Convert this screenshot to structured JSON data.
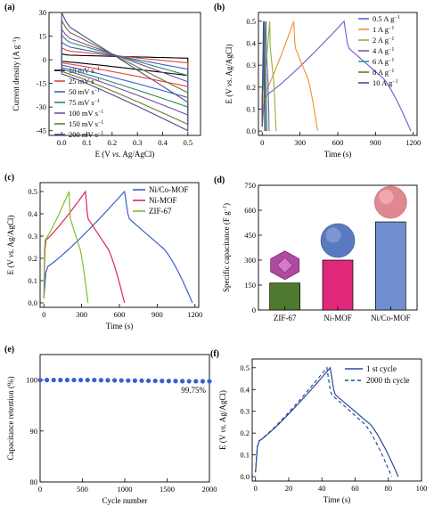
{
  "panels": [
    {
      "id": "a",
      "panel_label": "(a)",
      "type": "cv",
      "xlabel": "E (V vs. Ag/AgCl)",
      "ylabel": "Current density (A g⁻¹)",
      "xlim": [
        -0.05,
        0.55
      ],
      "ylim": [
        -48,
        30
      ],
      "xticks": [
        0.0,
        0.1,
        0.2,
        0.3,
        0.4,
        0.5
      ],
      "yticks": [
        -45,
        -30,
        -15,
        0,
        15,
        30
      ],
      "series": [
        {
          "name": "10 mV s⁻¹",
          "color": "#000000",
          "upper_start": 3.0,
          "upper_end": 1.0,
          "lower_start": -1.0,
          "lower_end": -10.0
        },
        {
          "name": "25 mV s⁻¹",
          "color": "#e8453c",
          "upper_start": 6.0,
          "upper_end": -2.0,
          "lower_start": -2.0,
          "lower_end": -17.0
        },
        {
          "name": "50 mV s⁻¹",
          "color": "#3a5fcd",
          "upper_start": 9.0,
          "upper_end": -6.0,
          "lower_start": -3.5,
          "lower_end": -24.0
        },
        {
          "name": "75 mV s⁻¹",
          "color": "#2e8b57",
          "upper_start": 12.5,
          "upper_end": -10.0,
          "lower_start": -5.0,
          "lower_end": -30.0
        },
        {
          "name": "100 mV s⁻¹",
          "color": "#7b4fa6",
          "upper_start": 15.5,
          "upper_end": -14.0,
          "lower_start": -6.0,
          "lower_end": -35.0
        },
        {
          "name": "150 mV s⁻¹",
          "color": "#6b7a2a",
          "upper_start": 20.0,
          "upper_end": -21.0,
          "lower_start": -7.5,
          "lower_end": -41.0
        },
        {
          "name": "200 mV s⁻¹",
          "color": "#4a4a8a",
          "upper_start": 24.0,
          "upper_end": -27.0,
          "lower_start": -9.0,
          "lower_end": -45.0
        }
      ]
    },
    {
      "id": "b",
      "panel_label": "(b)",
      "type": "gcd",
      "xlabel": "Time (s)",
      "ylabel": "E (V vs. Ag/AgCl)",
      "xlim": [
        -30,
        1230
      ],
      "ylim": [
        -0.02,
        0.54
      ],
      "xticks": [
        0,
        300,
        600,
        900,
        1200
      ],
      "yticks": [
        0.0,
        0.1,
        0.2,
        0.3,
        0.4,
        0.5
      ],
      "series": [
        {
          "name": "0.5 A g⁻¹",
          "color": "#6a5acd",
          "t_charge": 650,
          "t_end": 1180
        },
        {
          "name": "1 A g⁻¹",
          "color": "#f28e2b",
          "t_charge": 250,
          "t_end": 440
        },
        {
          "name": "2 A g⁻¹",
          "color": "#8ab33a",
          "t_charge": 60,
          "t_end": 110
        },
        {
          "name": "4 A g⁻¹",
          "color": "#7d55b5",
          "t_charge": 30,
          "t_end": 55
        },
        {
          "name": "6 A g⁻¹",
          "color": "#2a9d8f",
          "t_charge": 20,
          "t_end": 38
        },
        {
          "name": "8 A g⁻¹",
          "color": "#6b7a2a",
          "t_charge": 14,
          "t_end": 27
        },
        {
          "name": "10 A g⁻¹",
          "color": "#4a4a8a",
          "t_charge": 10,
          "t_end": 20
        }
      ]
    },
    {
      "id": "c",
      "panel_label": "(c)",
      "type": "gcd",
      "xlabel": "Time (s)",
      "ylabel": "E (V vs. Ag/AgCl)",
      "xlim": [
        -30,
        1230
      ],
      "ylim": [
        -0.02,
        0.54
      ],
      "xticks": [
        0,
        300,
        600,
        900,
        1200
      ],
      "yticks": [
        0.0,
        0.1,
        0.2,
        0.3,
        0.4,
        0.5
      ],
      "series": [
        {
          "name": "Ni/Co-MOF",
          "color": "#3a5fcd",
          "t_charge": 640,
          "t_end": 1180
        },
        {
          "name": "Ni-MOF",
          "color": "#e0245e",
          "t_charge": 330,
          "t_end": 640
        },
        {
          "name": "ZIF-67",
          "color": "#7cc034",
          "t_charge": 200,
          "t_end": 350
        }
      ]
    },
    {
      "id": "d",
      "panel_label": "(d)",
      "type": "bar",
      "ylabel": "Specific capacitance (F g⁻¹)",
      "ylim": [
        0,
        750
      ],
      "yticks": [
        0,
        150,
        300,
        450,
        600,
        750
      ],
      "categories": [
        "ZIF-67",
        "Ni-MOF",
        "Ni/Co-MOF"
      ],
      "values": [
        162,
        300,
        530
      ],
      "colors": [
        "#4d7a2e",
        "#e0287a",
        "#6f8fd0"
      ],
      "particle_colors": [
        "#b04aa0",
        "#5a7ac0",
        "#e08890"
      ]
    },
    {
      "id": "e",
      "panel_label": "(e)",
      "type": "scatter",
      "xlabel": "Cycle number",
      "ylabel": "Capacitance retention (%)",
      "xlim": [
        0,
        2000
      ],
      "ylim": [
        80,
        105
      ],
      "xticks": [
        0,
        500,
        1000,
        1500,
        2000
      ],
      "yticks": [
        80,
        90,
        100
      ],
      "xticklabels": [
        "0",
        "500",
        "1000",
        "1500",
        "2000"
      ],
      "annotation": "99.75%",
      "color": "#3a5fcd",
      "points_x": [
        0,
        80,
        160,
        240,
        320,
        400,
        480,
        560,
        640,
        720,
        800,
        880,
        960,
        1040,
        1120,
        1200,
        1280,
        1360,
        1440,
        1520,
        1600,
        1680,
        1760,
        1840,
        1920,
        2000
      ],
      "points_y": [
        100,
        100,
        100,
        100,
        100,
        100,
        100,
        100,
        100,
        99.98,
        99.95,
        99.93,
        99.92,
        99.9,
        99.88,
        99.87,
        99.85,
        99.83,
        99.82,
        99.8,
        99.8,
        99.78,
        99.77,
        99.76,
        99.75,
        99.75
      ]
    },
    {
      "id": "f",
      "panel_label": "(f)",
      "type": "gcd_cycle",
      "xlabel": "Time (s)",
      "ylabel": "E (V vs. Ag/AgCl)",
      "xlim": [
        -2,
        100
      ],
      "ylim": [
        -0.02,
        0.54
      ],
      "xticks": [
        0,
        20,
        40,
        60,
        80,
        100
      ],
      "yticks": [
        0.0,
        0.1,
        0.2,
        0.3,
        0.4,
        0.5
      ],
      "series": [
        {
          "name": "1 st cycle",
          "color": "#2a4a9a",
          "dash": "",
          "t_charge": 45,
          "t_end": 86
        },
        {
          "name": "2000 th cycle",
          "color": "#2a4a9a",
          "dash": "4,3",
          "t_charge": 43,
          "t_end": 82
        }
      ]
    }
  ],
  "chart_data": [
    {
      "type": "line",
      "title": "",
      "xlabel": "E (V vs. Ag/AgCl)",
      "ylabel": "Current density (A g⁻¹)",
      "xlim": [
        0.0,
        0.5
      ],
      "ylim": [
        -45,
        30
      ],
      "series": [
        {
          "name": "10 mV s⁻¹"
        },
        {
          "name": "25 mV s⁻¹"
        },
        {
          "name": "50 mV s⁻¹"
        },
        {
          "name": "75 mV s⁻¹"
        },
        {
          "name": "100 mV s⁻¹"
        },
        {
          "name": "150 mV s⁻¹"
        },
        {
          "name": "200 mV s⁻¹"
        }
      ]
    },
    {
      "type": "line",
      "xlabel": "Time (s)",
      "ylabel": "E (V vs. Ag/AgCl)",
      "xlim": [
        0,
        1200
      ],
      "ylim": [
        0.0,
        0.5
      ],
      "series": [
        {
          "name": "0.5 A g⁻¹",
          "discharge_end_s": 1180
        },
        {
          "name": "1 A g⁻¹",
          "discharge_end_s": 440
        },
        {
          "name": "2 A g⁻¹",
          "discharge_end_s": 110
        },
        {
          "name": "4 A g⁻¹",
          "discharge_end_s": 55
        },
        {
          "name": "6 A g⁻¹",
          "discharge_end_s": 38
        },
        {
          "name": "8 A g⁻¹",
          "discharge_end_s": 27
        },
        {
          "name": "10 A g⁻¹",
          "discharge_end_s": 20
        }
      ]
    },
    {
      "type": "line",
      "xlabel": "Time (s)",
      "ylabel": "E (V vs. Ag/AgCl)",
      "xlim": [
        0,
        1200
      ],
      "ylim": [
        0.0,
        0.5
      ],
      "series": [
        {
          "name": "Ni/Co-MOF",
          "discharge_end_s": 1180
        },
        {
          "name": "Ni-MOF",
          "discharge_end_s": 640
        },
        {
          "name": "ZIF-67",
          "discharge_end_s": 350
        }
      ]
    },
    {
      "type": "bar",
      "ylabel": "Specific capacitance (F g⁻¹)",
      "categories": [
        "ZIF-67",
        "Ni-MOF",
        "Ni/Co-MOF"
      ],
      "values": [
        162,
        300,
        530
      ],
      "ylim": [
        0,
        750
      ]
    },
    {
      "type": "scatter",
      "xlabel": "Cycle number",
      "ylabel": "Capacitance retention (%)",
      "xlim": [
        0,
        2000
      ],
      "ylim": [
        80,
        105
      ],
      "final_retention": "99.75%"
    },
    {
      "type": "line",
      "xlabel": "Time (s)",
      "ylabel": "E (V vs. Ag/AgCl)",
      "xlim": [
        0,
        100
      ],
      "ylim": [
        0.0,
        0.5
      ],
      "series": [
        {
          "name": "1 st cycle",
          "discharge_end_s": 86
        },
        {
          "name": "2000 th cycle",
          "discharge_end_s": 82
        }
      ]
    }
  ]
}
